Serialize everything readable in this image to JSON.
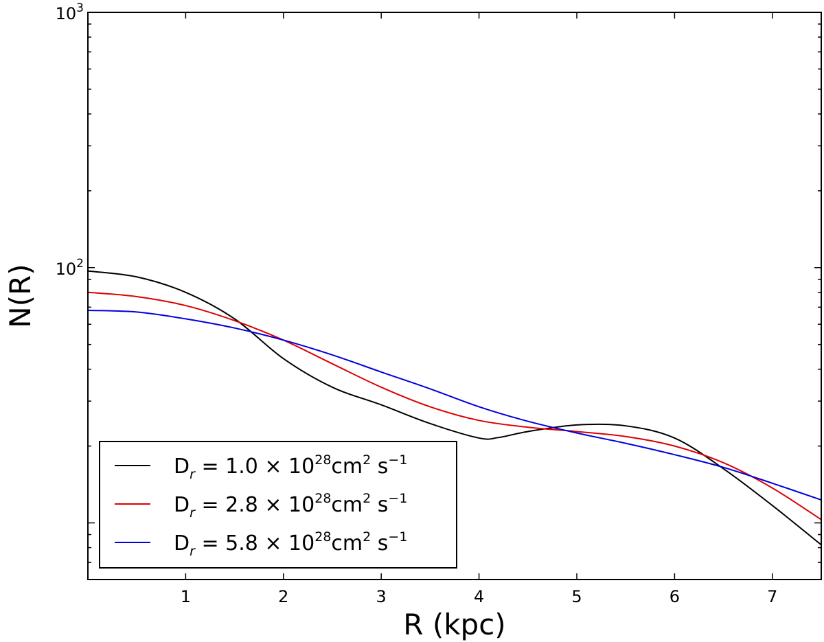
{
  "chart_data": {
    "type": "line",
    "title": "",
    "xlabel": "R (kpc)",
    "ylabel": "N(R)",
    "xlim": [
      0,
      7.5
    ],
    "ylim": [
      6,
      1000
    ],
    "yscale": "log",
    "grid": false,
    "legend_position": "bottom-left",
    "x_ticks": [
      1,
      2,
      3,
      4,
      5,
      6,
      7
    ],
    "x_tick_labels": [
      "1",
      "2",
      "3",
      "4",
      "5",
      "6",
      "7"
    ],
    "y_major_ticks": [
      {
        "value": 100,
        "base": "10",
        "exp": "2"
      },
      {
        "value": 1000,
        "base": "10",
        "exp": "3"
      }
    ],
    "series": [
      {
        "name": "D_r = 1.0 ×10^28 cm^2 s^-1",
        "color": "#000000",
        "label": {
          "pre": "D",
          "sub": "r",
          "mid": " = 1.0  × 10",
          "exp": "28",
          "unit": "cm",
          "unitexp": "2",
          "s": " s",
          "sexp": "−1"
        },
        "x": [
          0,
          0.5,
          1.0,
          1.5,
          2.0,
          2.5,
          3.0,
          3.5,
          4.0,
          4.2,
          4.5,
          5.0,
          5.5,
          6.0,
          6.5,
          7.0,
          7.5
        ],
        "y": [
          97,
          92,
          80,
          63,
          44,
          34,
          29,
          24.5,
          21.5,
          21.6,
          22.8,
          24.2,
          24.0,
          21.5,
          16.3,
          11.7,
          8.2
        ]
      },
      {
        "name": "D_r = 2.8 ×10^28 cm^2 s^-1",
        "color": "#dd0000",
        "label": {
          "pre": "D",
          "sub": "r",
          "mid": " = 2.8  × 10",
          "exp": "28",
          "unit": "cm",
          "unitexp": "2",
          "s": " s",
          "sexp": "−1"
        },
        "x": [
          0,
          0.5,
          1.0,
          1.5,
          2.0,
          2.5,
          3.0,
          3.5,
          4.0,
          4.5,
          5.0,
          5.5,
          6.0,
          6.5,
          7.0,
          7.5
        ],
        "y": [
          80,
          77,
          71,
          62,
          52,
          42,
          34,
          28.5,
          25.2,
          23.7,
          22.8,
          21.8,
          20.0,
          17.2,
          13.7,
          10.3
        ]
      },
      {
        "name": "D_r = 5.8 ×10^28 cm^2 s^-1",
        "color": "#0000dd",
        "label": {
          "pre": "D",
          "sub": "r",
          "mid": " = 5.8  × 10",
          "exp": "28",
          "unit": "cm",
          "unitexp": "2",
          "s": " s",
          "sexp": "−1"
        },
        "x": [
          0,
          0.5,
          1.0,
          1.5,
          2.0,
          2.5,
          3.0,
          3.5,
          4.0,
          4.5,
          5.0,
          5.5,
          6.0,
          6.5,
          7.0,
          7.5
        ],
        "y": [
          68,
          67,
          63,
          58,
          52,
          45.5,
          39,
          33.5,
          28.5,
          25,
          22.5,
          20.5,
          18.5,
          16.5,
          14.3,
          12.3
        ]
      }
    ]
  }
}
